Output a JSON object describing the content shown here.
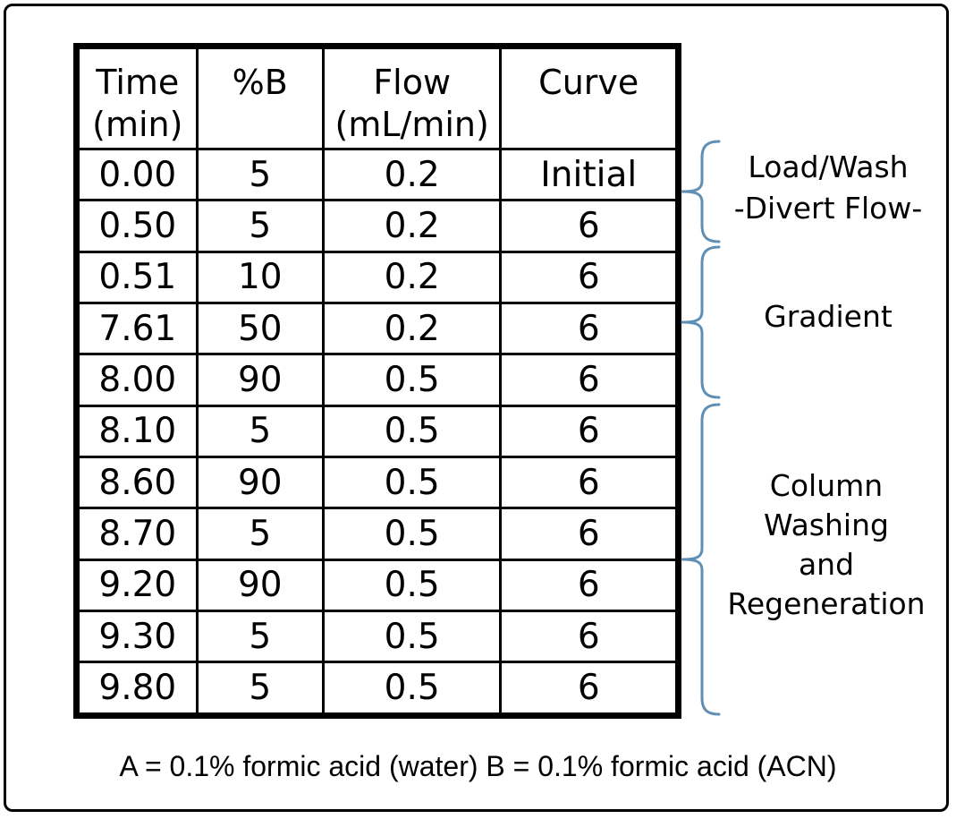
{
  "table": {
    "columns": [
      {
        "label": "Time",
        "sublabel": "(min)"
      },
      {
        "label": "%B",
        "sublabel": ""
      },
      {
        "label": "Flow",
        "sublabel": "(mL/min)"
      },
      {
        "label": "Curve",
        "sublabel": ""
      }
    ],
    "rows": [
      [
        "0.00",
        "5",
        "0.2",
        "Initial"
      ],
      [
        "0.50",
        "5",
        "0.2",
        "6"
      ],
      [
        "0.51",
        "10",
        "0.2",
        "6"
      ],
      [
        "7.61",
        "50",
        "0.2",
        "6"
      ],
      [
        "8.00",
        "90",
        "0.5",
        "6"
      ],
      [
        "8.10",
        "5",
        "0.5",
        "6"
      ],
      [
        "8.60",
        "90",
        "0.5",
        "6"
      ],
      [
        "8.70",
        "5",
        "0.5",
        "6"
      ],
      [
        "9.20",
        "90",
        "0.5",
        "6"
      ],
      [
        "9.30",
        "5",
        "0.5",
        "6"
      ],
      [
        "9.80",
        "5",
        "0.5",
        "6"
      ]
    ]
  },
  "phases": [
    {
      "name": "load-wash",
      "lines": [
        "Load/Wash",
        "-Divert Flow-"
      ]
    },
    {
      "name": "gradient",
      "lines": [
        "Gradient"
      ]
    },
    {
      "name": "column-washing-regeneration",
      "lines": [
        "Column",
        "Washing",
        "and",
        "Regeneration"
      ]
    }
  ],
  "caption": "A = 0.1% formic acid (water) B = 0.1% formic acid (ACN)",
  "colors": {
    "brace": "#5f8fb4",
    "text": "#000000",
    "border": "#000000"
  }
}
